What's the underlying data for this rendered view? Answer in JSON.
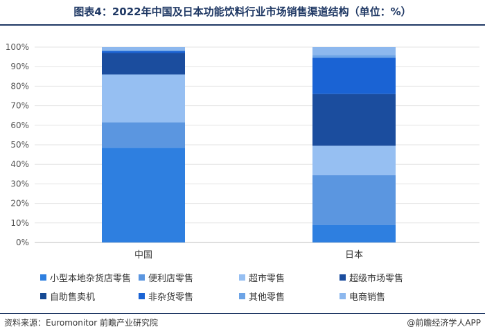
{
  "header": {
    "title": "图表4：2022年中国及日本功能饮料行业市场销售渠道结构（单位：%）"
  },
  "footer": {
    "source": "资料来源：Euromonitor 前瞻产业研究院",
    "brand": "@前瞻经济学人APP"
  },
  "chart_data": {
    "type": "bar",
    "stacked": true,
    "title": "图表4：2022年中国及日本功能饮料行业市场销售渠道结构（单位：%）",
    "categories": [
      "中国",
      "日本"
    ],
    "ylim": [
      0,
      100
    ],
    "yticks": [
      "0%",
      "10%",
      "20%",
      "30%",
      "40%",
      "50%",
      "60%",
      "70%",
      "80%",
      "90%",
      "100%"
    ],
    "grid": true,
    "legend_position": "bottom",
    "series": [
      {
        "name": "小型本地杂货店零售",
        "color": "#2e7fe0",
        "values": [
          48.5,
          9.0
        ]
      },
      {
        "name": "便利店零售",
        "color": "#5b96e0",
        "values": [
          13.0,
          25.5
        ]
      },
      {
        "name": "超市零售",
        "color": "#96bff2",
        "values": [
          24.5,
          15.0
        ]
      },
      {
        "name": "超级市场零售",
        "color": "#1b4d9e",
        "values": [
          11.0,
          26.5
        ]
      },
      {
        "name": "自助售卖机",
        "color": "#164a94",
        "values": [
          0.0,
          0.0
        ]
      },
      {
        "name": "非杂货零售",
        "color": "#1a63d4",
        "values": [
          1.0,
          18.5
        ]
      },
      {
        "name": "其他零售",
        "color": "#6da4e6",
        "values": [
          0.5,
          1.5
        ]
      },
      {
        "name": "电商销售",
        "color": "#8db8ee",
        "values": [
          1.5,
          4.0
        ]
      }
    ]
  }
}
